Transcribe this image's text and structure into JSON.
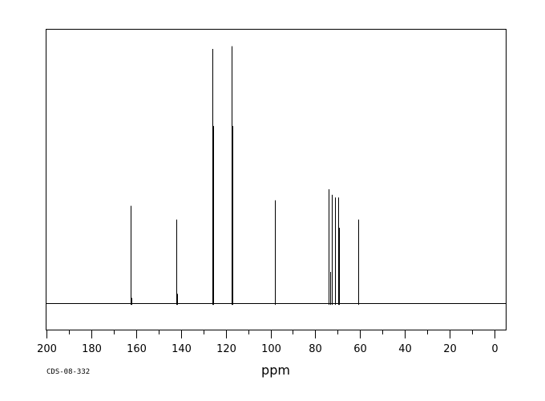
{
  "chart_data": {
    "type": "line",
    "title": "",
    "xlabel": "ppm",
    "ylabel": "",
    "code": "CDS-08-332",
    "xlim": [
      200,
      -5
    ],
    "ylim": [
      -0.09,
      1.0
    ],
    "x_major_ticks": [
      200,
      180,
      160,
      140,
      120,
      100,
      80,
      60,
      40,
      20,
      0
    ],
    "x_minor_step": 10,
    "grid": false,
    "legend": "none",
    "peaks": [
      {
        "ppm": 162.4,
        "height": 0.36
      },
      {
        "ppm": 162.2,
        "height": 0.025
      },
      {
        "ppm": 142.0,
        "height": 0.31
      },
      {
        "ppm": 141.8,
        "height": 0.04
      },
      {
        "ppm": 126.0,
        "height": 0.93
      },
      {
        "ppm": 125.6,
        "height": 0.65
      },
      {
        "ppm": 117.2,
        "height": 0.94
      },
      {
        "ppm": 116.9,
        "height": 0.65
      },
      {
        "ppm": 98.1,
        "height": 0.38
      },
      {
        "ppm": 73.9,
        "height": 0.42
      },
      {
        "ppm": 73.2,
        "height": 0.12
      },
      {
        "ppm": 72.5,
        "height": 0.4
      },
      {
        "ppm": 71.2,
        "height": 0.39
      },
      {
        "ppm": 69.9,
        "height": 0.39
      },
      {
        "ppm": 69.5,
        "height": 0.28
      },
      {
        "ppm": 60.9,
        "height": 0.31
      }
    ],
    "colors": {
      "frame": "#000000",
      "trace": "#000000",
      "background": "#ffffff"
    }
  }
}
